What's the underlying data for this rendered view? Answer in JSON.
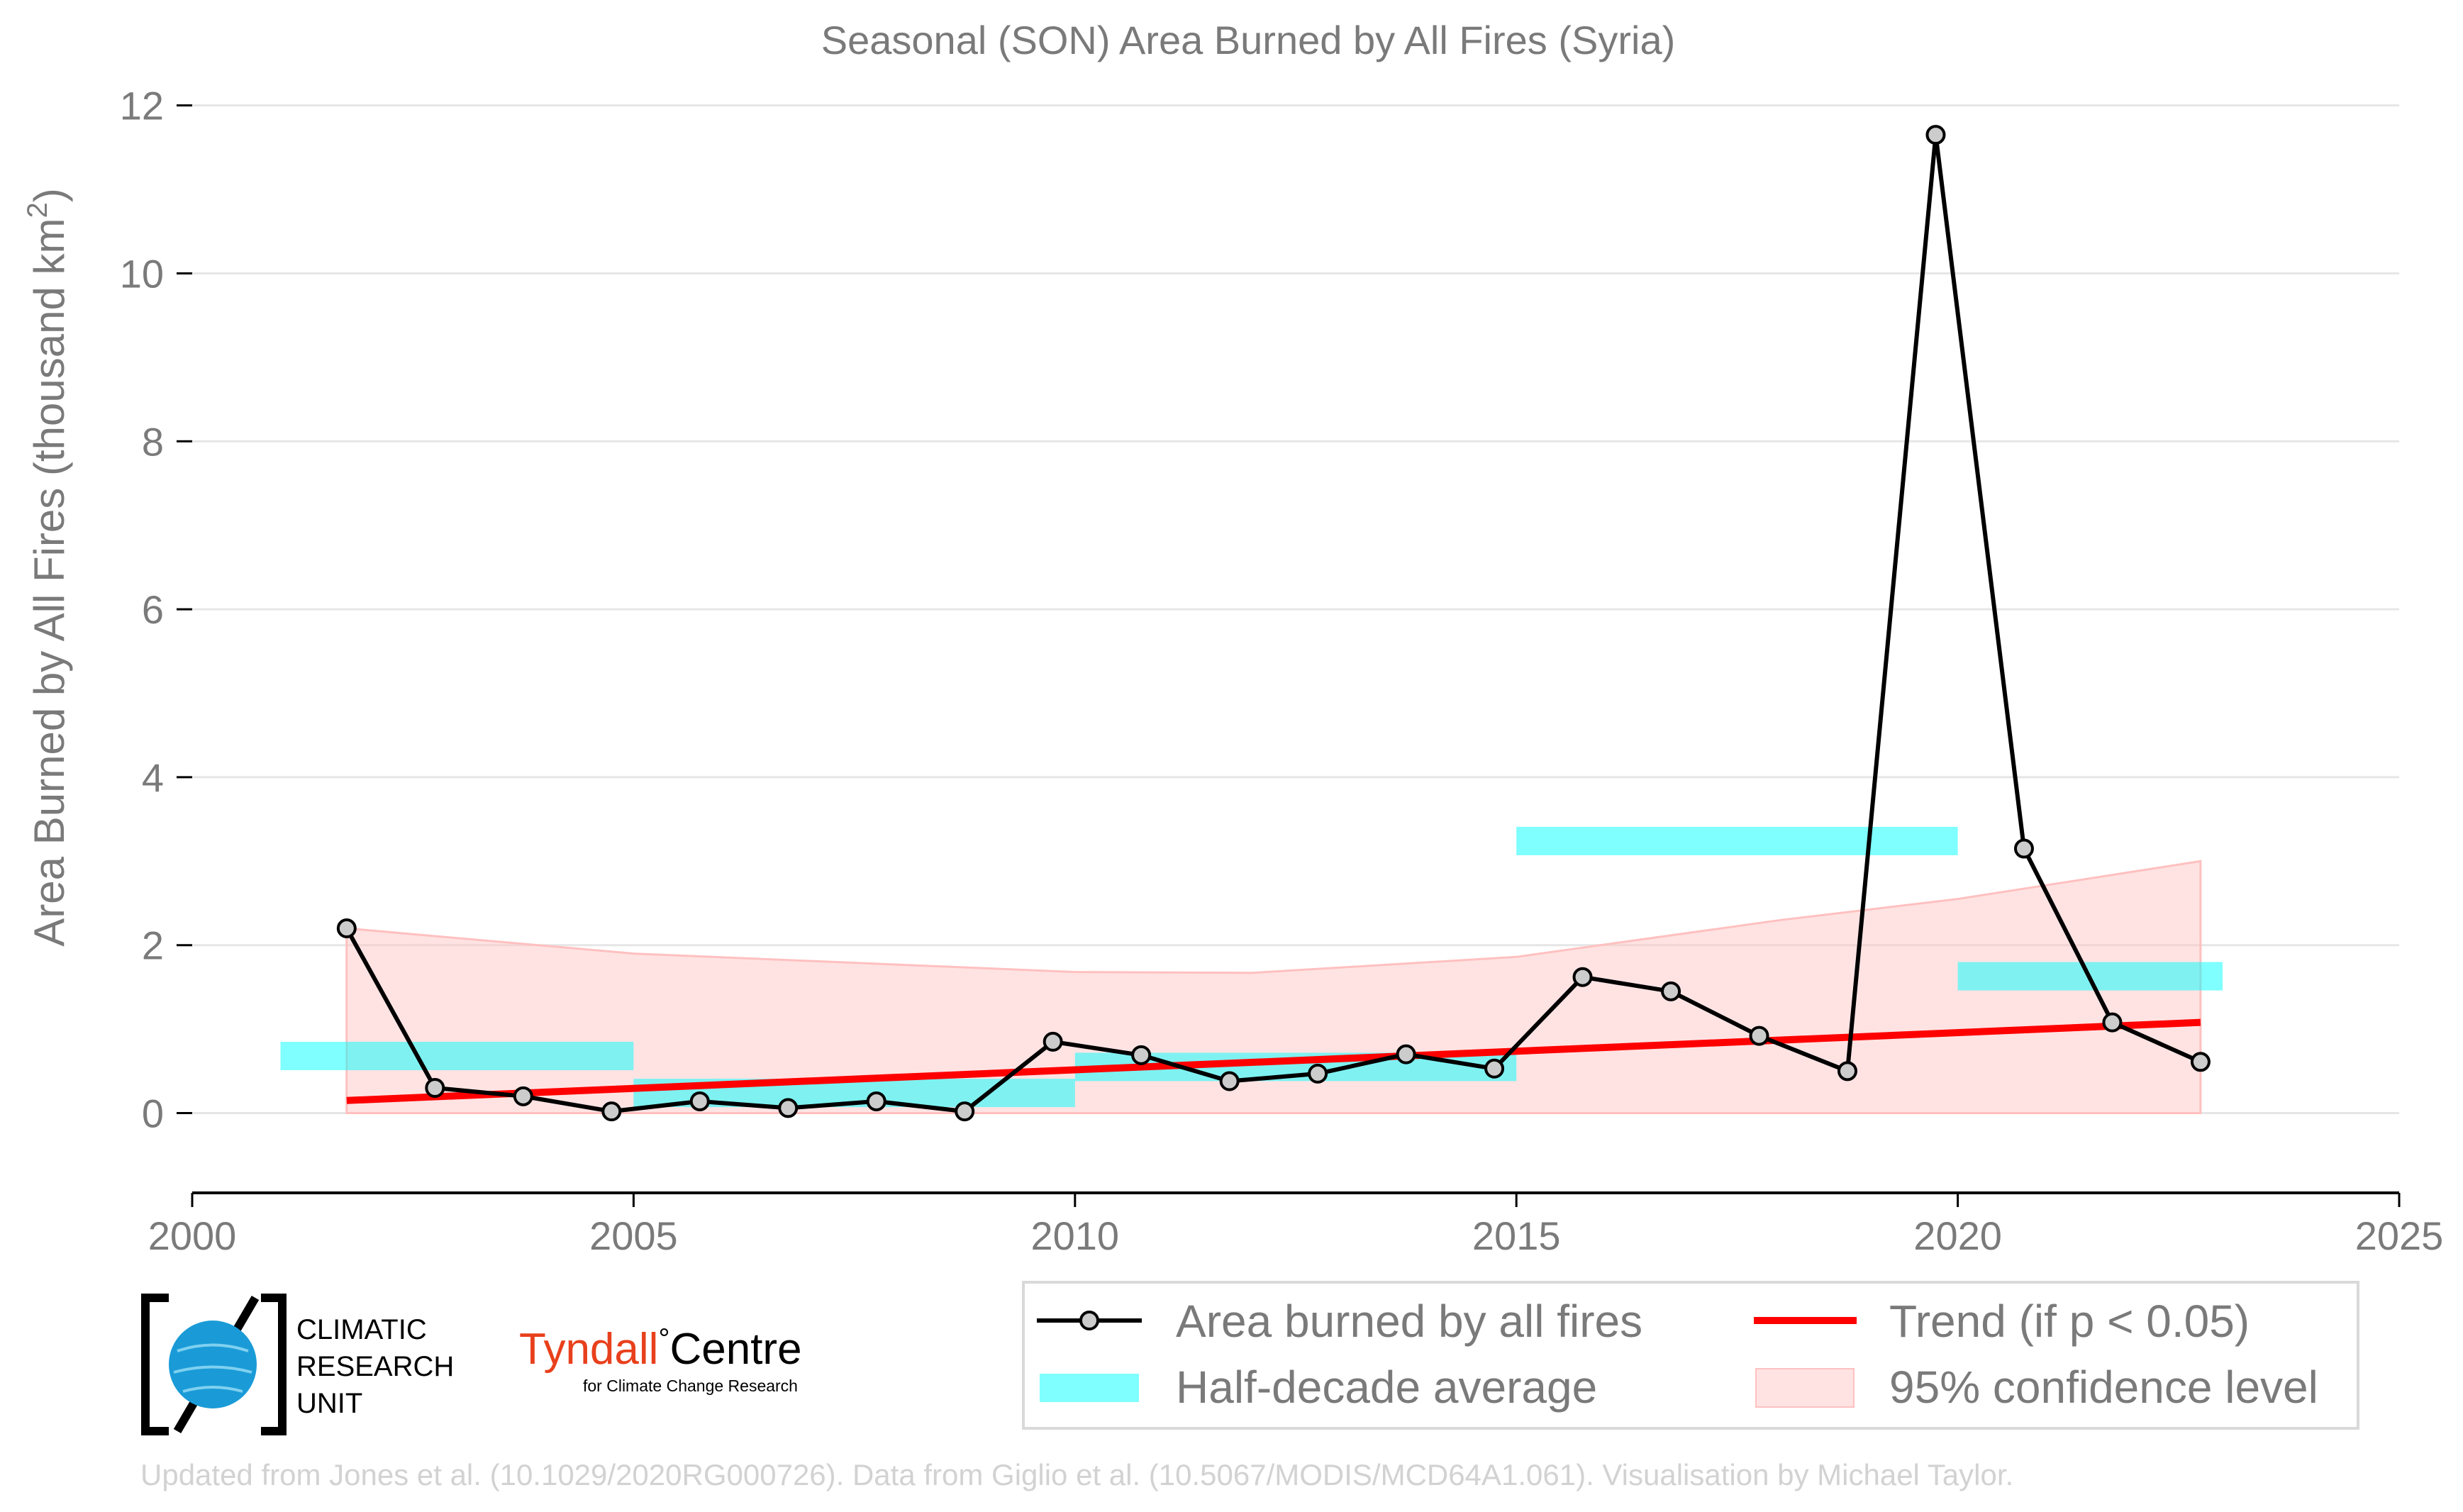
{
  "chart_data": {
    "type": "line",
    "title": "Seasonal (SON) Area Burned by All Fires (Syria)",
    "ylabel_main": "Area Burned by All Fires (thousand km",
    "ylabel_sup": "2",
    "ylabel_close": ")",
    "xlabel": "",
    "xlim": [
      2000,
      2025
    ],
    "ylim": [
      -0.95,
      12.2
    ],
    "xticks": [
      2000,
      2005,
      2010,
      2015,
      2020,
      2025
    ],
    "yticks": [
      0,
      2,
      4,
      6,
      8,
      10,
      12
    ],
    "grid": "horizontal",
    "legend_position": "bottom-right",
    "series": [
      {
        "name": "Area burned by all fires",
        "color": "#000000",
        "marker_fill": "#cccccc",
        "x": [
          2001.75,
          2002.75,
          2003.75,
          2004.75,
          2005.75,
          2006.75,
          2007.75,
          2008.75,
          2009.75,
          2010.75,
          2011.75,
          2012.75,
          2013.75,
          2014.75,
          2015.75,
          2016.75,
          2017.75,
          2018.75,
          2019.75,
          2020.75,
          2021.75,
          2022.75
        ],
        "values": [
          2.2,
          0.3,
          0.2,
          0.02,
          0.14,
          0.06,
          0.14,
          0.02,
          0.85,
          0.69,
          0.38,
          0.47,
          0.7,
          0.53,
          1.62,
          1.45,
          0.92,
          0.5,
          11.65,
          3.15,
          1.08,
          0.61
        ]
      },
      {
        "name": "Half-decade average",
        "color": "#00ffff",
        "segments": [
          {
            "x0": 2001,
            "x1": 2005,
            "value": 0.68
          },
          {
            "x0": 2005,
            "x1": 2010,
            "value": 0.24
          },
          {
            "x0": 2010,
            "x1": 2015,
            "value": 0.55
          },
          {
            "x0": 2015,
            "x1": 2020,
            "value": 3.24
          },
          {
            "x0": 2020,
            "x1": 2023,
            "value": 1.63
          }
        ]
      },
      {
        "name": "Trend (if p < 0.05)",
        "color": "#ff0000",
        "x": [
          2001.75,
          2022.75
        ],
        "values": [
          0.15,
          1.08
        ]
      },
      {
        "name": "95% confidence level",
        "color": "#ffc0c0",
        "x": [
          2001.75,
          2005,
          2010,
          2012,
          2015,
          2018,
          2020,
          2022.75
        ],
        "upper": [
          2.2,
          1.9,
          1.68,
          1.67,
          1.86,
          2.3,
          2.55,
          3.0
        ],
        "lower": [
          0,
          0,
          0,
          0,
          0,
          0,
          0,
          0
        ]
      }
    ]
  },
  "legend": {
    "items": [
      "Area burned by all fires",
      "Trend (if p < 0.05)",
      "Half-decade average",
      "95% confidence level"
    ]
  },
  "logos": {
    "cru_lines": [
      "CLIMATIC",
      "RESEARCH",
      "UNIT"
    ],
    "tyndall_main": "Tyndall",
    "tyndall_degree": "°",
    "tyndall_centre": "Centre",
    "tyndall_sub": "for Climate Change Research"
  },
  "credit": "Updated from Jones et al. (10.1029/2020RG000726). Data from Giglio et al. (10.5067/MODIS/MCD64A1.061). Visualisation by Michael Taylor.",
  "colors": {
    "axis_text": "#7a7a7a",
    "grid": "#e6e6e6",
    "cru_globe": "#1a9bd7",
    "tyndall_red": "#e8401c"
  }
}
